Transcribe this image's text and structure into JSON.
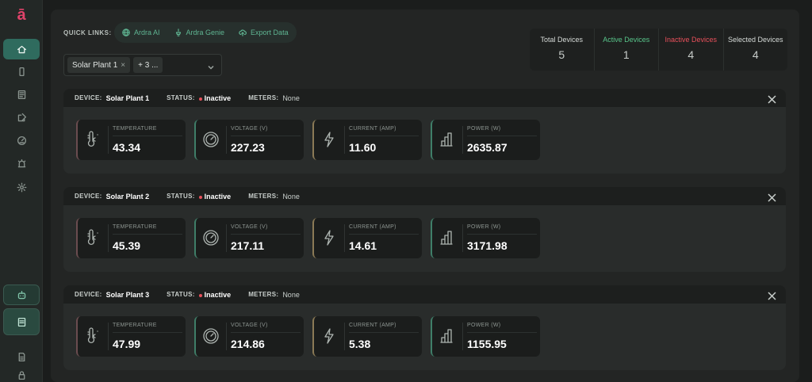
{
  "sidebar": {
    "logo": "ā",
    "items": [
      {
        "icon": "home-icon",
        "active": true
      },
      {
        "icon": "phone-icon"
      },
      {
        "icon": "document-icon"
      },
      {
        "icon": "edit-icon"
      },
      {
        "icon": "gauge-icon"
      },
      {
        "icon": "alarm-icon"
      },
      {
        "icon": "gear-icon"
      }
    ],
    "bottom_items": [
      {
        "icon": "robot-icon"
      },
      {
        "icon": "report-icon"
      },
      {
        "icon": "file-icon"
      },
      {
        "icon": "lock-icon"
      }
    ]
  },
  "quick_links": {
    "label": "QUICK LINKS:",
    "items": [
      {
        "label": "Ardra AI",
        "icon": "globe-icon"
      },
      {
        "label": "Ardra Genie",
        "icon": "genie-icon"
      },
      {
        "label": "Export Data",
        "icon": "cloud-upload-icon"
      }
    ]
  },
  "device_select": {
    "chip": "Solar Plant 1",
    "chip_remove": "×",
    "more": "+ 3 ..."
  },
  "stats": [
    {
      "label": "Total Devices",
      "value": "5"
    },
    {
      "label": "Active Devices",
      "value": "1"
    },
    {
      "label": "Inactive Devices",
      "value": "4"
    },
    {
      "label": "Selected Devices",
      "value": "4"
    }
  ],
  "labels": {
    "device": "DEVICE:",
    "status": "STATUS:",
    "meters": "METERS:",
    "temperature": "TEMPERATURE",
    "voltage": "VOLTAGE (V)",
    "current": "CURRENT (AMP)",
    "power": "POWER (W)"
  },
  "colors": {
    "accent": "#2f6b5e",
    "active": "#58c48a",
    "inactive": "#e8505b",
    "brand": "#e0436a"
  },
  "devices": [
    {
      "name": "Solar Plant 1",
      "status": "Inactive",
      "meters": "None",
      "temperature": "43.34",
      "voltage": "227.23",
      "current": "11.60",
      "power": "2635.87"
    },
    {
      "name": "Solar Plant 2",
      "status": "Inactive",
      "meters": "None",
      "temperature": "45.39",
      "voltage": "217.11",
      "current": "14.61",
      "power": "3171.98"
    },
    {
      "name": "Solar Plant 3",
      "status": "Inactive",
      "meters": "None",
      "temperature": "47.99",
      "voltage": "214.86",
      "current": "5.38",
      "power": "1155.95"
    }
  ]
}
